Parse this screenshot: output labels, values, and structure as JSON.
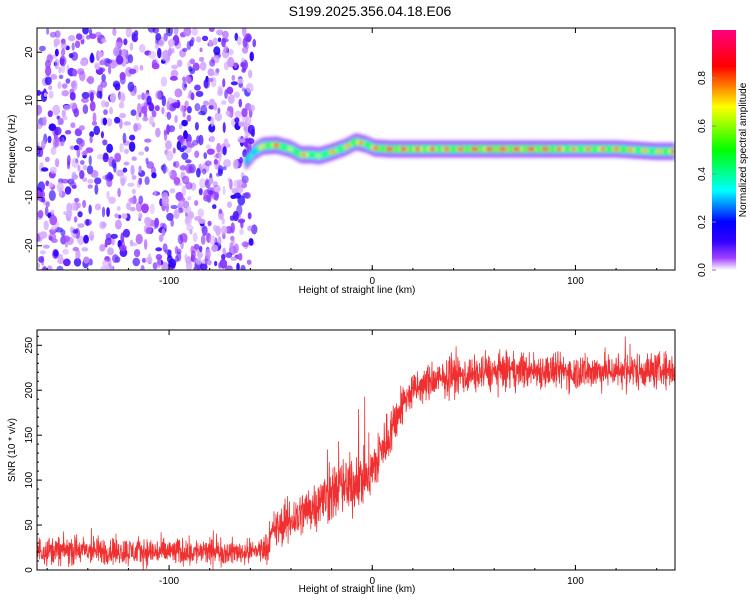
{
  "title": "S199.2025.356.04.18.E06",
  "chart_data": [
    {
      "type": "heatmap",
      "title": "S199.2025.356.04.18.E06",
      "xlabel": "Height of straight line (km)",
      "ylabel": "Frequency (Hz)",
      "xlim": [
        -165,
        149
      ],
      "ylim": [
        -25,
        25
      ],
      "xticks": [
        -100,
        0,
        100
      ],
      "xtick_labels": [
        "-100",
        "0",
        "100"
      ],
      "yticks": [
        -20,
        -10,
        0,
        10,
        20
      ],
      "ytick_labels": [
        "-20",
        "-10",
        "0",
        "10",
        "20"
      ],
      "noise_region_x": [
        -165,
        -62
      ],
      "ridge": {
        "x": [
          -62,
          -58,
          -54,
          -47,
          -40,
          -35,
          -30,
          -26,
          -21,
          -13,
          -8,
          -3,
          1,
          9,
          20,
          40,
          60,
          80,
          100,
          120,
          140,
          149
        ],
        "frequency": [
          -2.5,
          -0.5,
          0.6,
          0.8,
          0,
          -1.2,
          -1.2,
          -1.4,
          -0.8,
          0.4,
          1.5,
          1.0,
          0.2,
          0,
          0,
          0,
          0,
          0,
          0,
          0,
          -0.5,
          -0.5
        ],
        "amplitude": [
          0.3,
          0.5,
          0.7,
          0.85,
          0.6,
          0.8,
          0.7,
          0.6,
          0.75,
          0.7,
          0.85,
          0.7,
          0.8,
          0.9,
          0.85,
          0.8,
          0.95,
          0.9,
          0.75,
          0.8,
          0.7,
          0.85
        ]
      },
      "colorbar": {
        "label": "Normalized spectral amplitude",
        "range": [
          0,
          1
        ],
        "ticks": [
          0.0,
          0.2,
          0.4,
          0.6,
          0.8
        ],
        "tick_labels": [
          "0.0",
          "0.2",
          "0.4",
          "0.6",
          "0.8"
        ],
        "colors": [
          "#ffffff",
          "#8000ff",
          "#0000ff",
          "#00ffff",
          "#00ff00",
          "#ffff00",
          "#ff0000",
          "#ff0080"
        ]
      }
    },
    {
      "type": "line",
      "xlabel": "Height of straight line (km)",
      "ylabel": "SNR (10 * v/v)",
      "xlim": [
        -165,
        149
      ],
      "ylim": [
        0,
        267
      ],
      "xticks": [
        -100,
        0,
        100
      ],
      "xtick_labels": [
        "-100",
        "0",
        "100"
      ],
      "yticks": [
        0,
        50,
        100,
        150,
        200,
        250
      ],
      "ytick_labels": [
        "0",
        "50",
        "100",
        "150",
        "200",
        "250"
      ],
      "series_color": "#f03030",
      "trend": {
        "x": [
          -165,
          -100,
          -60,
          -52,
          -48,
          -40,
          -30,
          -20,
          -10,
          0,
          5,
          10,
          15,
          20,
          30,
          40,
          60,
          80,
          100,
          120,
          149
        ],
        "mean": [
          22,
          20,
          20,
          25,
          45,
          55,
          70,
          85,
          95,
          110,
          135,
          160,
          185,
          200,
          210,
          215,
          220,
          222,
          220,
          222,
          222
        ],
        "spread": [
          14,
          14,
          12,
          14,
          20,
          22,
          25,
          28,
          30,
          30,
          28,
          25,
          20,
          18,
          18,
          18,
          18,
          18,
          18,
          18,
          18
        ]
      }
    }
  ]
}
